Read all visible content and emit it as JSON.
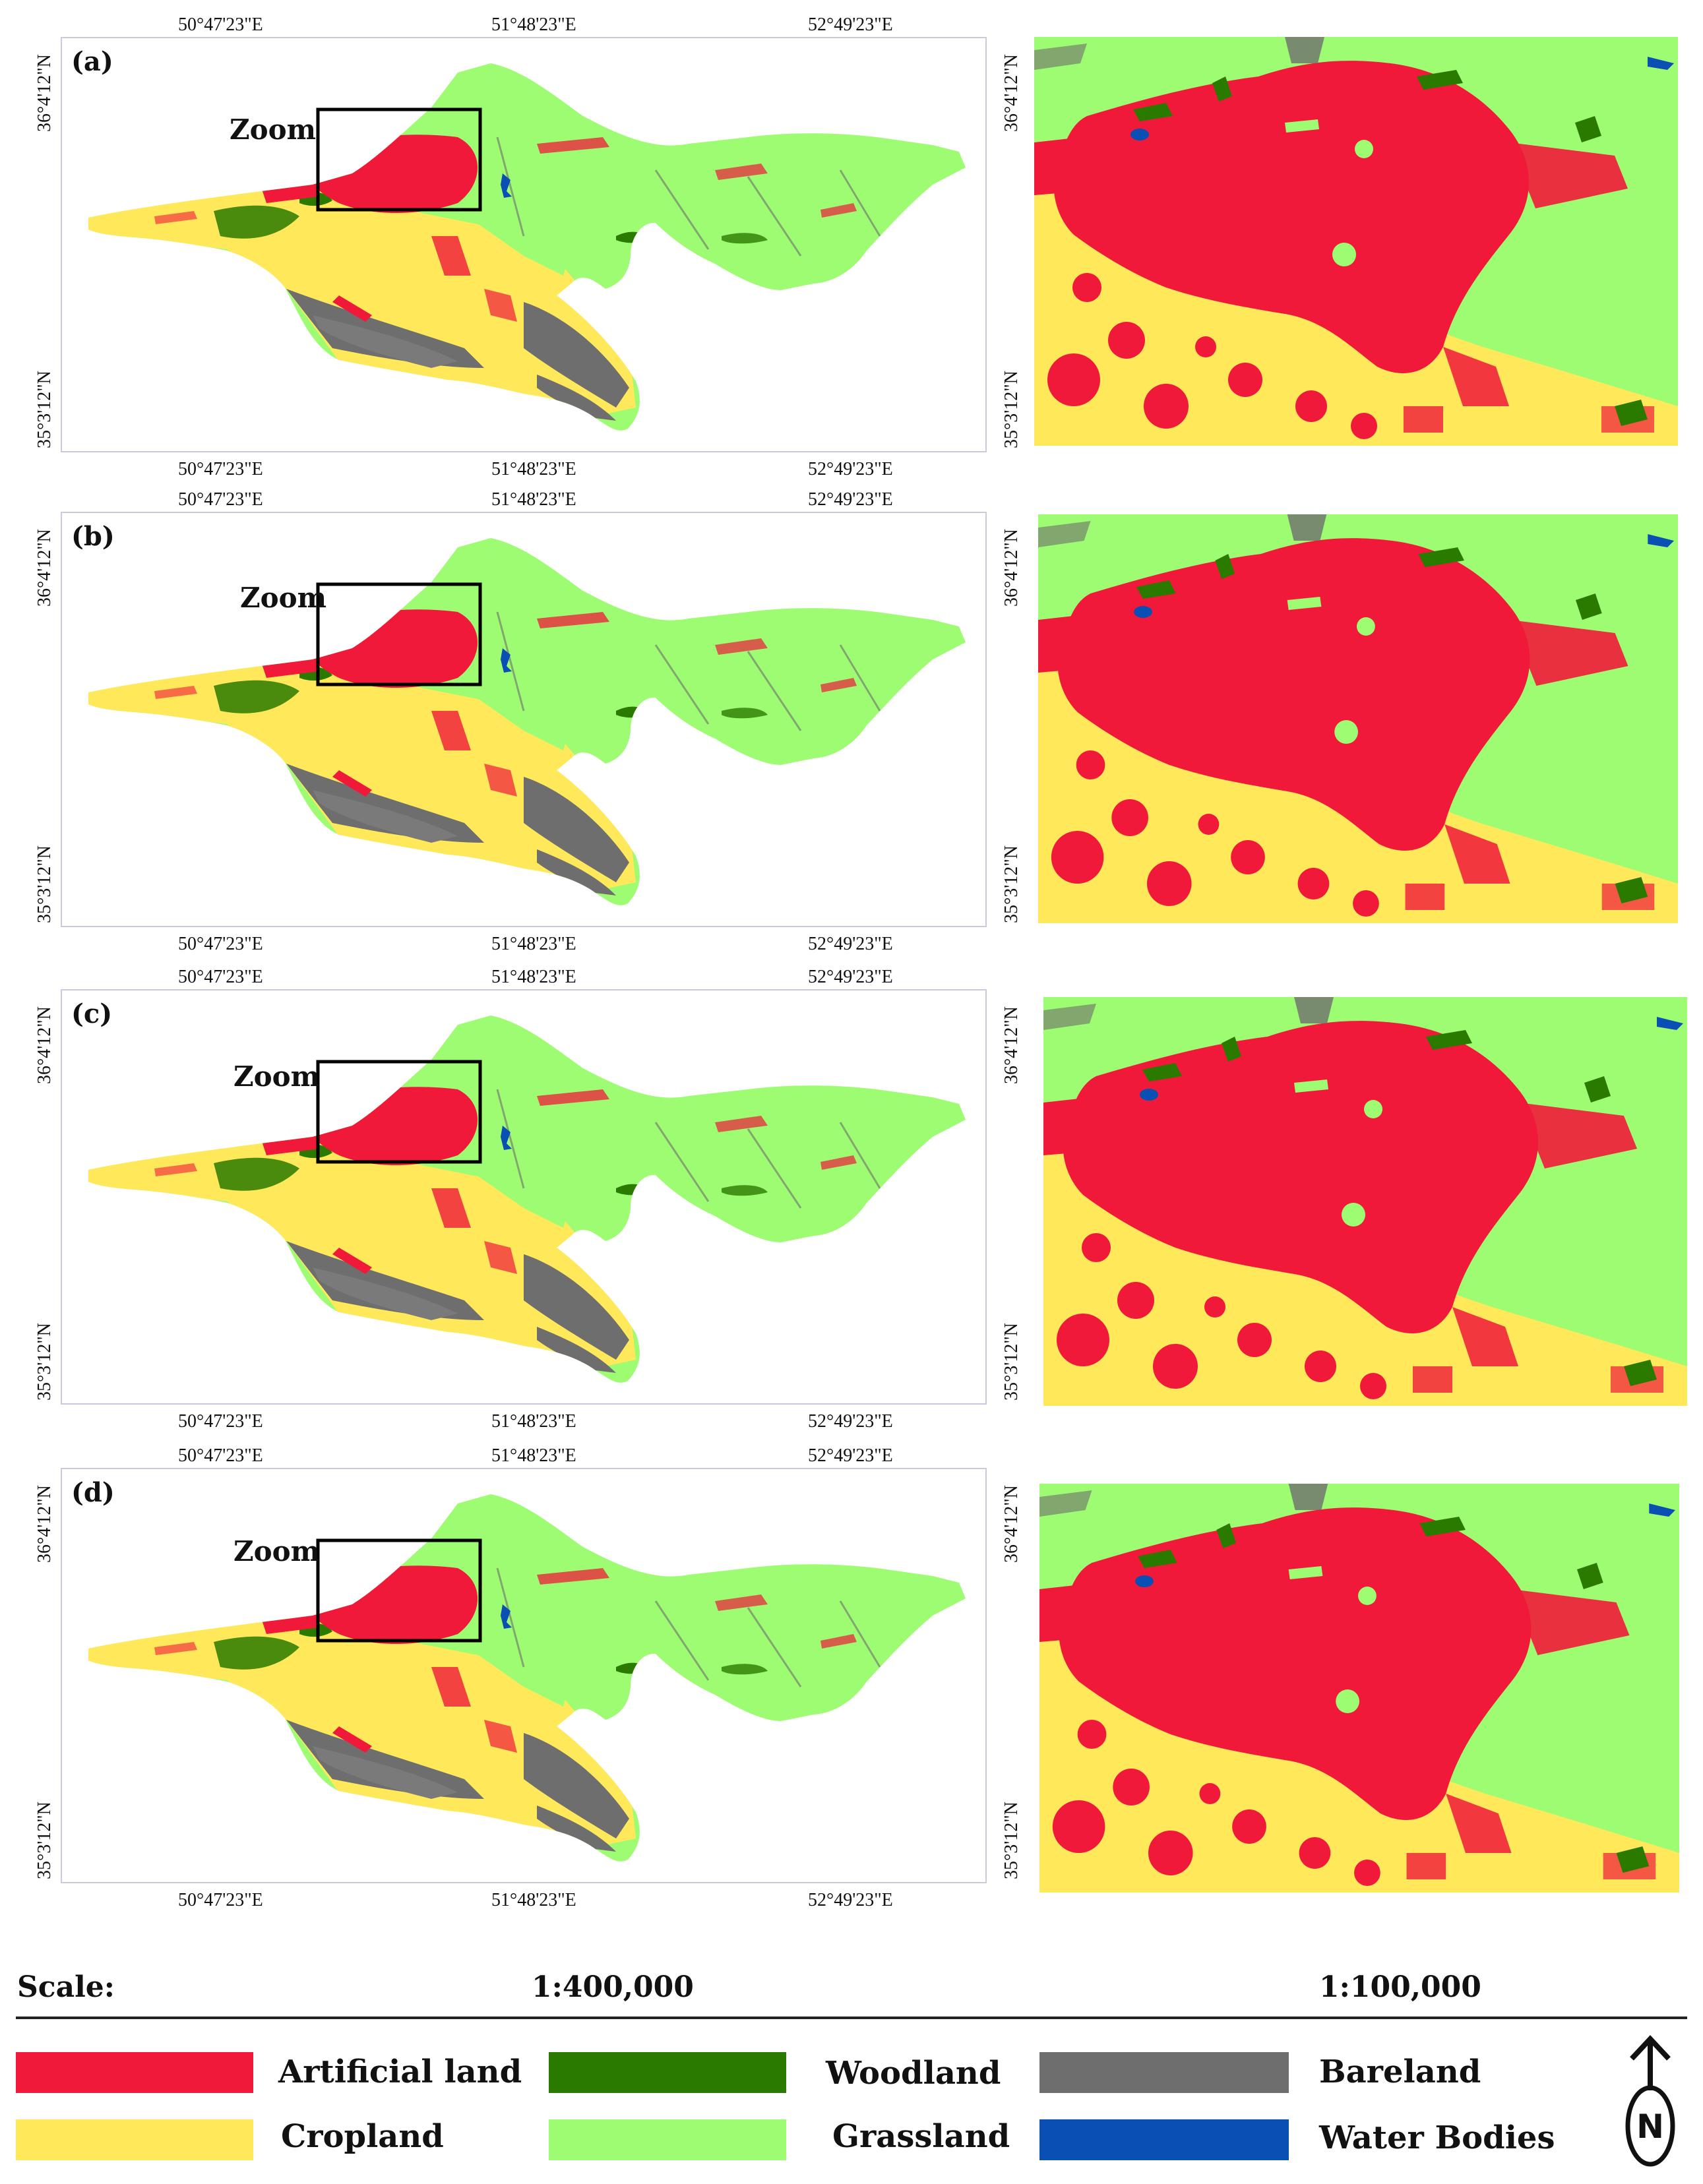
{
  "panels": [
    {
      "label": "(a)",
      "zoom_label": "Zoom"
    },
    {
      "label": "(b)",
      "zoom_label": "Zoom"
    },
    {
      "label": "(c)",
      "zoom_label": "Zoom"
    },
    {
      "label": "(d)",
      "zoom_label": "Zoom"
    }
  ],
  "coords": {
    "lon": [
      "50°47'23\"E",
      "51°48'23\"E",
      "52°49'23\"E"
    ],
    "lat_top": "36°4'12\"N",
    "lat_bottom": "35°3'12\"N"
  },
  "scale": {
    "label": "Scale:",
    "main": "1:400,000",
    "zoom": "1:100,000"
  },
  "legend": [
    {
      "label": "Artificial land",
      "color": "#f0193a"
    },
    {
      "label": "Woodland",
      "color": "#2a7a00"
    },
    {
      "label": "Bareland",
      "color": "#6e6e6e"
    },
    {
      "label": "Cropland",
      "color": "#ffe95a"
    },
    {
      "label": "Grassland",
      "color": "#9efc72"
    },
    {
      "label": "Water Bodies",
      "color": "#0a4fb4"
    }
  ],
  "north": {
    "symbol": "N"
  }
}
